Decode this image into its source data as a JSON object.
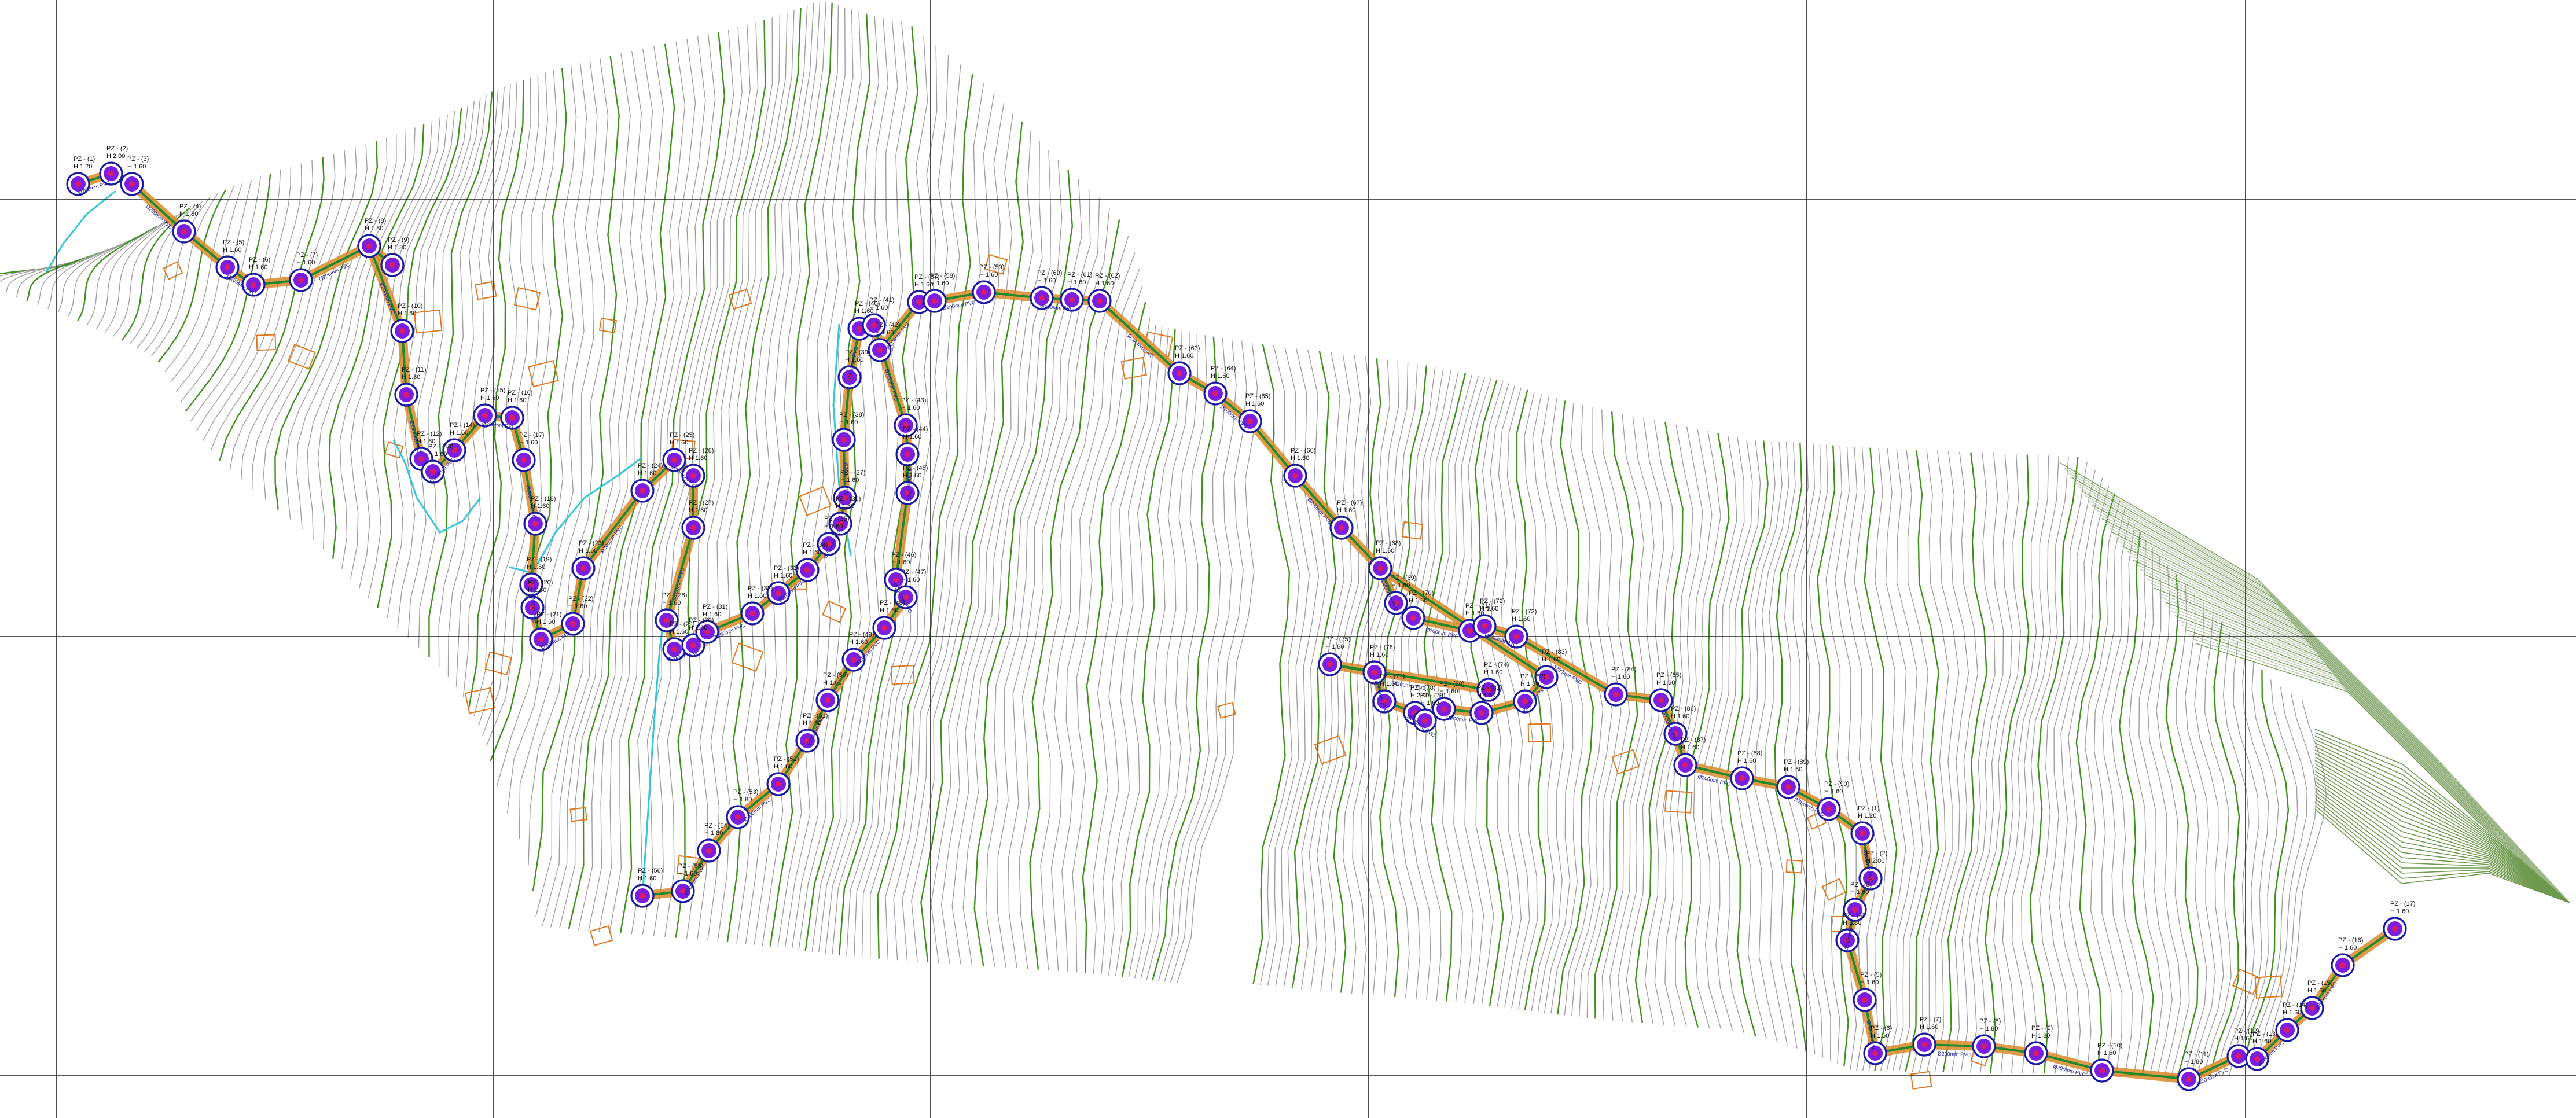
{
  "drawing": {
    "layers": {
      "contour_minor": "#9e9e9e",
      "contour_major": "#3f8f1f",
      "contour_dense": "#6f9a4f",
      "stream": "#35c6d8",
      "pipe_outer": "#d98a2a",
      "pipe_inner": "#1f8a2a",
      "node_ring": "#1a1aa0",
      "node_fill": "#7a1ee0",
      "node_core": "#d81b6b",
      "annotation": "#1a1aa0",
      "parcel": "#e07820",
      "grid": "#222222"
    },
    "nodes": [
      {
        "id": "1",
        "label": "PZ - (1)",
        "depth": "H 1.20"
      },
      {
        "id": "2",
        "label": "PZ - (2)",
        "depth": "H 2.00"
      },
      {
        "id": "3",
        "label": "PZ - (3)",
        "depth": "H 1.60"
      },
      {
        "id": "4",
        "label": "PZ - (4)",
        "depth": "H 1.80"
      },
      {
        "id": "5",
        "label": "PZ - (5)",
        "depth": "H 1.60"
      },
      {
        "id": "6",
        "label": "PZ - (6)",
        "depth": "H 1.60"
      },
      {
        "id": "7",
        "label": "PZ - (7)",
        "depth": "H 1.60"
      },
      {
        "id": "8",
        "label": "PZ - (8)",
        "depth": "H 1.80"
      },
      {
        "id": "9",
        "label": "PZ - (9)",
        "depth": "H 1.80"
      },
      {
        "id": "10",
        "label": "PZ - (10)",
        "depth": "H 1.60"
      },
      {
        "id": "11",
        "label": "PZ - (11)",
        "depth": "H 1.80"
      },
      {
        "id": "12",
        "label": "PZ - (12)",
        "depth": "H 1.60"
      },
      {
        "id": "13",
        "label": "PZ - (13)",
        "depth": "H 1.60"
      },
      {
        "id": "14",
        "label": "PZ - (14)",
        "depth": "H 1.60"
      },
      {
        "id": "15",
        "label": "PZ - (15)",
        "depth": "H 1.60"
      },
      {
        "id": "16",
        "label": "PZ - (16)",
        "depth": "H 1.60"
      },
      {
        "id": "17",
        "label": "PZ - (17)",
        "depth": "H 1.60"
      },
      {
        "id": "18",
        "label": "PZ - (18)",
        "depth": "H 1.60"
      },
      {
        "id": "19",
        "label": "PZ - (19)",
        "depth": "H 1.60"
      },
      {
        "id": "20",
        "label": "PZ - (20)",
        "depth": "H 1.60"
      },
      {
        "id": "21",
        "label": "PZ - (21)",
        "depth": "H 1.60"
      },
      {
        "id": "22",
        "label": "PZ - (22)",
        "depth": "H 1.60"
      },
      {
        "id": "23",
        "label": "PZ - (23)",
        "depth": "H 1.60"
      },
      {
        "id": "24",
        "label": "PZ - (24)",
        "depth": "H 1.60"
      },
      {
        "id": "25",
        "label": "PZ - (25)",
        "depth": "H 1.60"
      },
      {
        "id": "26",
        "label": "PZ - (26)",
        "depth": "H 1.60"
      },
      {
        "id": "27",
        "label": "PZ - (27)",
        "depth": "H 1.60"
      },
      {
        "id": "28",
        "label": "PZ - (28)",
        "depth": "H 1.60"
      },
      {
        "id": "29",
        "label": "PZ - (29)",
        "depth": "H 1.60"
      },
      {
        "id": "30",
        "label": "PZ - (30)",
        "depth": "H 1.60"
      },
      {
        "id": "31",
        "label": "PZ - (31)",
        "depth": "H 1.60"
      },
      {
        "id": "32",
        "label": "PZ - (32)",
        "depth": "H 1.60"
      },
      {
        "id": "33",
        "label": "PZ - (33)",
        "depth": "H 1.60"
      },
      {
        "id": "34",
        "label": "PZ - (34)",
        "depth": "H 1.60"
      },
      {
        "id": "35",
        "label": "PZ - (35)",
        "depth": "H 1.60"
      },
      {
        "id": "36",
        "label": "PZ - (36)",
        "depth": "H 1.60"
      },
      {
        "id": "37",
        "label": "PZ - (37)",
        "depth": "H 1.60"
      },
      {
        "id": "38",
        "label": "PZ - (38)",
        "depth": "H 1.60"
      },
      {
        "id": "39",
        "label": "PZ - (39)",
        "depth": "H 1.60"
      },
      {
        "id": "40",
        "label": "PZ - (40)",
        "depth": "H 1.60"
      },
      {
        "id": "41",
        "label": "PZ - (41)",
        "depth": "H 1.60"
      },
      {
        "id": "42",
        "label": "PZ - (42)",
        "depth": "H 1.60"
      },
      {
        "id": "43",
        "label": "PZ - (43)",
        "depth": "H 1.60"
      },
      {
        "id": "44",
        "label": "PZ - (44)",
        "depth": "H 1.60"
      },
      {
        "id": "45",
        "label": "PZ - (45)",
        "depth": "H 1.60"
      },
      {
        "id": "46",
        "label": "PZ - (46)",
        "depth": "H 1.60"
      },
      {
        "id": "47",
        "label": "PZ - (47)",
        "depth": "H 1.60"
      },
      {
        "id": "48",
        "label": "PZ - (48)",
        "depth": "H 1.60"
      },
      {
        "id": "49",
        "label": "PZ - (49)",
        "depth": "H 1.60"
      },
      {
        "id": "50",
        "label": "PZ - (50)",
        "depth": "H 1.60"
      },
      {
        "id": "51",
        "label": "PZ - (51)",
        "depth": "H 1.60"
      },
      {
        "id": "52",
        "label": "PZ - (52)",
        "depth": "H 1.60"
      },
      {
        "id": "53",
        "label": "PZ - (53)",
        "depth": "H 1.80"
      },
      {
        "id": "54",
        "label": "PZ - (54)",
        "depth": "H 1.80"
      },
      {
        "id": "55",
        "label": "PZ - (55)",
        "depth": "H 1.60"
      },
      {
        "id": "56",
        "label": "PZ - (56)",
        "depth": "H 1.60"
      },
      {
        "id": "57",
        "label": "PZ - (57)",
        "depth": "H 1.60"
      },
      {
        "id": "58",
        "label": "PZ - (58)",
        "depth": "H 1.60"
      },
      {
        "id": "59",
        "label": "PZ - (59)",
        "depth": "H 1.60"
      },
      {
        "id": "60",
        "label": "PZ - (60)",
        "depth": "H 1.60"
      },
      {
        "id": "61",
        "label": "PZ - (61)",
        "depth": "H 1.60"
      },
      {
        "id": "62",
        "label": "PZ - (62)",
        "depth": "H 1.60"
      },
      {
        "id": "63",
        "label": "PZ - (63)",
        "depth": "H 1.60"
      },
      {
        "id": "64",
        "label": "PZ - (64)",
        "depth": "H 1.60"
      },
      {
        "id": "65",
        "label": "PZ - (65)",
        "depth": "H 1.60"
      },
      {
        "id": "66",
        "label": "PZ - (66)",
        "depth": "H 1.60"
      },
      {
        "id": "67",
        "label": "PZ - (67)",
        "depth": "H 1.60"
      },
      {
        "id": "68",
        "label": "PZ - (68)",
        "depth": "H 1.60"
      },
      {
        "id": "69",
        "label": "PZ - (69)",
        "depth": "H 1.60"
      },
      {
        "id": "70",
        "label": "PZ - (70)",
        "depth": "H 1.60"
      },
      {
        "id": "71",
        "label": "PZ - (71)",
        "depth": "H 1.60"
      },
      {
        "id": "72",
        "label": "PZ - (72)",
        "depth": "H 1.60"
      },
      {
        "id": "73",
        "label": "PZ - (73)",
        "depth": "H 1.60"
      },
      {
        "id": "74",
        "label": "PZ - (74)",
        "depth": "H 1.60"
      },
      {
        "id": "75",
        "label": "PZ - (75)",
        "depth": "H 1.60"
      },
      {
        "id": "76",
        "label": "PZ - (76)",
        "depth": "H 1.60"
      },
      {
        "id": "77",
        "label": "PZ - (77)",
        "depth": "H 1.60"
      },
      {
        "id": "78",
        "label": "PZ - (78)",
        "depth": "H 2.00"
      },
      {
        "id": "79",
        "label": "PZ - (79)",
        "depth": "H 1.60"
      },
      {
        "id": "80",
        "label": "PZ - (80)",
        "depth": "H 1.60"
      },
      {
        "id": "81",
        "label": "PZ - (81)",
        "depth": "H 1.60"
      },
      {
        "id": "82",
        "label": "PZ - (82)",
        "depth": "H 1.60"
      },
      {
        "id": "83",
        "label": "PZ - (83)",
        "depth": "H 1.60"
      },
      {
        "id": "84",
        "label": "PZ - (84)",
        "depth": "H 1.60"
      },
      {
        "id": "85",
        "label": "PZ - (85)",
        "depth": "H 1.60"
      },
      {
        "id": "86",
        "label": "PZ - (86)",
        "depth": "H 1.60"
      },
      {
        "id": "87",
        "label": "PZ - (87)",
        "depth": "H 1.60"
      },
      {
        "id": "88",
        "label": "PZ - (88)",
        "depth": "H 1.60"
      },
      {
        "id": "89",
        "label": "PZ - (89)",
        "depth": "H 1.60"
      },
      {
        "id": "90",
        "label": "PZ - (90)",
        "depth": "H 1.60"
      }
    ],
    "pipe_label": "Ø200mm PVC"
  }
}
